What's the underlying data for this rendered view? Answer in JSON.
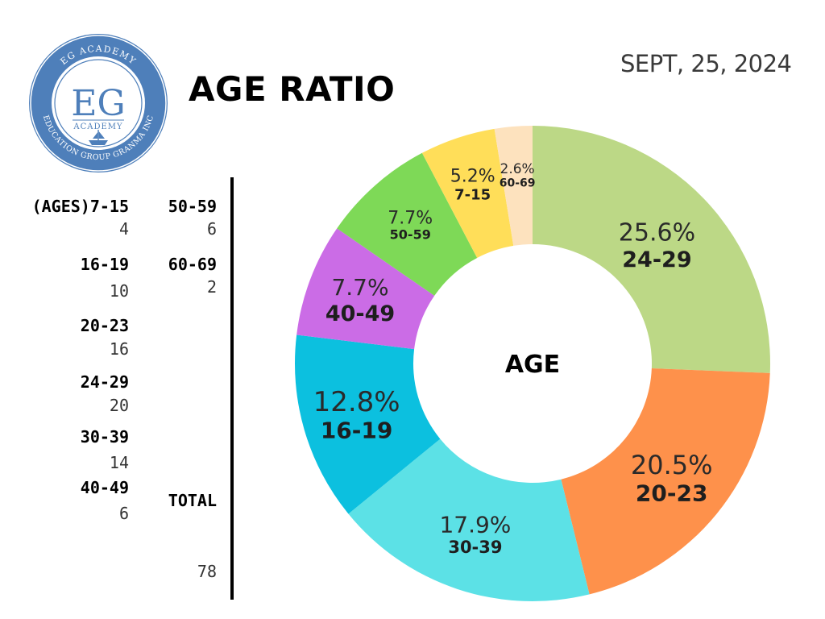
{
  "logo": {
    "arc_top": "EG ACADEMY",
    "arc_bottom": "EDUCATION GROUP GRANMA INC",
    "monogram": "EG",
    "word": "ACADEMY",
    "ring_color": "#4e7fba",
    "ship_icon": "ship-icon"
  },
  "title": "AGE RATIO",
  "date": "SEPT, 25, 2024",
  "legend": {
    "col1": [
      {
        "label": "(AGES)7-15",
        "value": "4"
      },
      {
        "label": "16-19",
        "value": "10"
      },
      {
        "label": "20-23",
        "value": "16"
      },
      {
        "label": "24-29",
        "value": "20"
      },
      {
        "label": "30-39",
        "value": "14"
      },
      {
        "label": "40-49",
        "value": "6"
      }
    ],
    "col2": [
      {
        "label": "50-59",
        "value": "6"
      },
      {
        "label": "60-69",
        "value": "2"
      }
    ],
    "total_label": "TOTAL",
    "total_value": "78"
  },
  "chart_data": {
    "type": "pie",
    "style": "donut",
    "center_label": "AGE",
    "total": 78,
    "series": [
      {
        "category": "24-29",
        "value": 20,
        "percent_label": "25.6%",
        "color": "#bcd886"
      },
      {
        "category": "20-23",
        "value": 16,
        "percent_label": "20.5%",
        "color": "#fe914b"
      },
      {
        "category": "30-39",
        "value": 14,
        "percent_label": "17.9%",
        "color": "#5ce1e6"
      },
      {
        "category": "16-19",
        "value": 10,
        "percent_label": "12.8%",
        "color": "#0cc0df"
      },
      {
        "category": "40-49",
        "value": 6,
        "percent_label": "7.7%",
        "color": "#cb6ce6"
      },
      {
        "category": "50-59",
        "value": 6,
        "percent_label": "7.7%",
        "color": "#7ed957"
      },
      {
        "category": "7-15",
        "value": 4,
        "percent_label": "5.2%",
        "color": "#ffde59"
      },
      {
        "category": "60-69",
        "value": 2,
        "percent_label": "2.6%",
        "color": "#fde2be"
      }
    ]
  }
}
